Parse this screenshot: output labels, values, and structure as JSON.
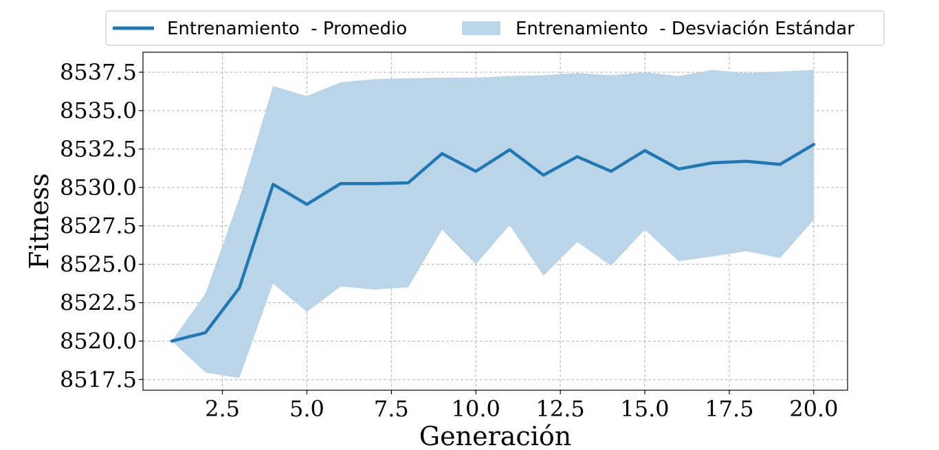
{
  "chart_data": {
    "type": "line",
    "xlabel": "Generación",
    "ylabel": "Fitness",
    "xlim": [
      0.15,
      21.0
    ],
    "ylim": [
      8516.8,
      8538.8
    ],
    "x_ticks": [
      2.5,
      5.0,
      7.5,
      10.0,
      12.5,
      15.0,
      17.5,
      20.0
    ],
    "y_ticks": [
      8517.5,
      8520.0,
      8522.5,
      8525.0,
      8527.5,
      8530.0,
      8532.5,
      8535.0,
      8537.5
    ],
    "x_tick_labels": [
      "2.5",
      "5.0",
      "7.5",
      "10.0",
      "12.5",
      "15.0",
      "17.5",
      "20.0"
    ],
    "y_tick_labels": [
      "8517.5",
      "8520.0",
      "8522.5",
      "8525.0",
      "8527.5",
      "8530.0",
      "8532.5",
      "8535.0",
      "8537.5"
    ],
    "grid": true,
    "legend_position": "top",
    "x": [
      1,
      2,
      3,
      4,
      5,
      6,
      7,
      8,
      9,
      10,
      11,
      12,
      13,
      14,
      15,
      16,
      17,
      18,
      19,
      20
    ],
    "series": [
      {
        "name": "Entrenamiento  - Promedio",
        "kind": "line",
        "color": "#1f77b4",
        "values": [
          8520.0,
          8520.55,
          8523.45,
          8530.2,
          8528.9,
          8530.25,
          8530.25,
          8530.3,
          8532.2,
          8531.05,
          8532.45,
          8530.8,
          8532.0,
          8531.05,
          8532.4,
          8531.2,
          8531.6,
          8531.7,
          8531.5,
          8532.8
        ]
      },
      {
        "name": "Entrenamiento  - Desviación Estándar",
        "kind": "band",
        "color": "#bad4e8",
        "upper": [
          8520.0,
          8523.1,
          8529.3,
          8536.6,
          8535.95,
          8536.85,
          8537.05,
          8537.1,
          8537.15,
          8537.15,
          8537.25,
          8537.3,
          8537.45,
          8537.3,
          8537.5,
          8537.25,
          8537.65,
          8537.45,
          8537.55,
          8537.65
        ],
        "lower": [
          8520.0,
          8517.95,
          8517.6,
          8523.75,
          8521.9,
          8523.55,
          8523.35,
          8523.5,
          8527.25,
          8525.0,
          8527.55,
          8524.25,
          8526.45,
          8524.9,
          8527.25,
          8525.2,
          8525.5,
          8525.85,
          8525.4,
          8527.9
        ]
      }
    ]
  }
}
